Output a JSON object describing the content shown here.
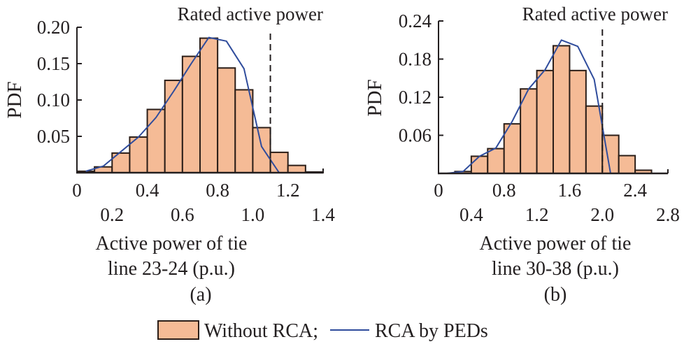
{
  "chart_data": [
    {
      "type": "bar",
      "panel": "(a)",
      "title": "",
      "xlabel_lines": [
        "Active power of tie",
        "line 23-24 (p.u.)"
      ],
      "ylabel": "PDF",
      "xlim": [
        0,
        1.4
      ],
      "ylim": [
        0,
        0.2
      ],
      "xticks": [
        0,
        0.2,
        0.4,
        0.6,
        0.8,
        1.0,
        1.2,
        1.4
      ],
      "xtick_labels": [
        "0",
        "0.2",
        "0.4",
        "0.6",
        "0.8",
        "1.0",
        "1.2",
        "1.4"
      ],
      "yticks": [
        0.05,
        0.1,
        0.15,
        0.2
      ],
      "ytick_labels": [
        "0.05",
        "0.10",
        "0.15",
        "0.20"
      ],
      "grid": false,
      "bin_width": 0.1,
      "bins": [
        {
          "x0": 0.0,
          "x1": 0.1,
          "value": 0.002
        },
        {
          "x0": 0.1,
          "x1": 0.2,
          "value": 0.008
        },
        {
          "x0": 0.2,
          "x1": 0.3,
          "value": 0.027
        },
        {
          "x0": 0.3,
          "x1": 0.4,
          "value": 0.049
        },
        {
          "x0": 0.4,
          "x1": 0.5,
          "value": 0.087
        },
        {
          "x0": 0.5,
          "x1": 0.6,
          "value": 0.127
        },
        {
          "x0": 0.6,
          "x1": 0.7,
          "value": 0.16
        },
        {
          "x0": 0.7,
          "x1": 0.8,
          "value": 0.185
        },
        {
          "x0": 0.8,
          "x1": 0.9,
          "value": 0.144
        },
        {
          "x0": 0.9,
          "x1": 1.0,
          "value": 0.114
        },
        {
          "x0": 1.0,
          "x1": 1.1,
          "value": 0.062
        },
        {
          "x0": 1.1,
          "x1": 1.2,
          "value": 0.028
        },
        {
          "x0": 1.2,
          "x1": 1.3,
          "value": 0.01
        },
        {
          "x0": 1.3,
          "x1": 1.4,
          "value": 0.001
        }
      ],
      "line": {
        "name": "RCA by PEDs",
        "x": [
          0.05,
          0.15,
          0.25,
          0.35,
          0.45,
          0.55,
          0.65,
          0.75,
          0.85,
          0.95,
          1.05,
          1.15
        ],
        "y": [
          0.002,
          0.009,
          0.029,
          0.049,
          0.076,
          0.112,
          0.15,
          0.186,
          0.181,
          0.143,
          0.036,
          0.0
        ]
      },
      "rated_line": {
        "label": "Rated active power",
        "x": 1.1
      }
    },
    {
      "type": "bar",
      "panel": "(b)",
      "title": "",
      "xlabel_lines": [
        "Active power of tie",
        "line 30-38 (p.u.)"
      ],
      "ylabel": "PDF",
      "xlim": [
        0,
        2.8
      ],
      "ylim": [
        0,
        0.24
      ],
      "xticks": [
        0,
        0.4,
        0.8,
        1.2,
        1.6,
        2.0,
        2.4,
        2.8
      ],
      "xtick_labels": [
        "0",
        "0.4",
        "0.8",
        "1.2",
        "1.6",
        "2.0",
        "2.4",
        "2.8"
      ],
      "yticks": [
        0.06,
        0.12,
        0.18,
        0.24
      ],
      "ytick_labels": [
        "0.06",
        "0.12",
        "0.18",
        "0.24"
      ],
      "grid": false,
      "bin_width": 0.2,
      "bins": [
        {
          "x0": 0.2,
          "x1": 0.4,
          "value": 0.003
        },
        {
          "x0": 0.4,
          "x1": 0.6,
          "value": 0.027
        },
        {
          "x0": 0.6,
          "x1": 0.8,
          "value": 0.039
        },
        {
          "x0": 0.8,
          "x1": 1.0,
          "value": 0.078
        },
        {
          "x0": 1.0,
          "x1": 1.2,
          "value": 0.133
        },
        {
          "x0": 1.2,
          "x1": 1.4,
          "value": 0.162
        },
        {
          "x0": 1.4,
          "x1": 1.6,
          "value": 0.201
        },
        {
          "x0": 1.6,
          "x1": 1.8,
          "value": 0.162
        },
        {
          "x0": 1.8,
          "x1": 2.0,
          "value": 0.106
        },
        {
          "x0": 2.0,
          "x1": 2.2,
          "value": 0.06
        },
        {
          "x0": 2.2,
          "x1": 2.4,
          "value": 0.028
        },
        {
          "x0": 2.4,
          "x1": 2.6,
          "value": 0.005
        }
      ],
      "line": {
        "name": "RCA by PEDs",
        "x": [
          0.1,
          0.3,
          0.5,
          0.7,
          0.9,
          1.1,
          1.3,
          1.5,
          1.7,
          1.9,
          2.1
        ],
        "y": [
          0.0,
          0.003,
          0.027,
          0.04,
          0.082,
          0.133,
          0.163,
          0.21,
          0.2,
          0.148,
          0.0
        ]
      },
      "rated_line": {
        "label": "Rated active power",
        "x": 2.0
      }
    }
  ],
  "legend": {
    "placement": "bottom-center",
    "items": [
      {
        "label": "Without RCA;",
        "kind": "bar"
      },
      {
        "label": "RCA by PEDs",
        "kind": "line"
      }
    ]
  },
  "colors": {
    "bar_fill": "#F5BB96",
    "bar_edge": "#2B1E18",
    "line": "#2F4C9C",
    "axis": "#231F20",
    "rated": "#231F20"
  }
}
